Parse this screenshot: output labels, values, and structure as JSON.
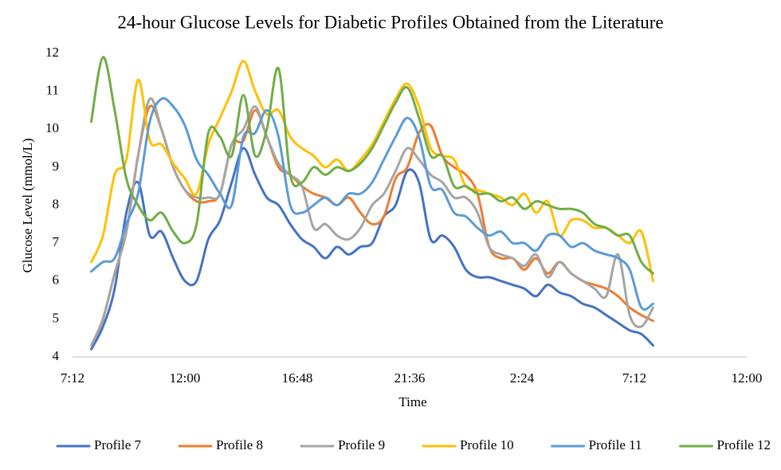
{
  "chart_data": {
    "type": "line",
    "title": "24-hour Glucose Levels for Diabetic Profiles Obtained from the Literature",
    "x_label": "Time",
    "y_label": "Glucose Level (mmol/L)",
    "x": [
      8,
      8.5,
      9,
      9.5,
      10,
      10.5,
      11,
      11.5,
      12,
      12.5,
      13,
      13.5,
      14,
      14.5,
      15,
      15.5,
      16,
      16.5,
      17,
      17.5,
      18,
      18.5,
      19,
      19.5,
      20,
      20.5,
      21,
      21.5,
      22,
      22.5,
      23,
      23.5,
      24,
      24.5,
      25,
      25.5,
      26,
      26.5,
      27,
      27.5,
      28,
      28.5,
      29,
      29.5,
      30,
      30.5,
      31,
      31.5,
      32
    ],
    "xlim": [
      7.2,
      36
    ],
    "xticks": [
      {
        "value": 7.2,
        "label": "7:12"
      },
      {
        "value": 12,
        "label": "12:00"
      },
      {
        "value": 16.8,
        "label": "16:48"
      },
      {
        "value": 21.6,
        "label": "21:36"
      },
      {
        "value": 26.4,
        "label": "2:24"
      },
      {
        "value": 31.2,
        "label": "7:12"
      },
      {
        "value": 36,
        "label": "12:00"
      }
    ],
    "ylim": [
      4,
      12
    ],
    "yticks": [
      4,
      5,
      6,
      7,
      8,
      9,
      10,
      11,
      12
    ],
    "grid": false,
    "legend": "bottom",
    "series": [
      {
        "name": "Profile 7",
        "color": "#4472c4",
        "values": [
          4.2,
          4.8,
          5.8,
          7.8,
          8.6,
          7.2,
          7.3,
          6.6,
          6.0,
          6.0,
          7.1,
          7.6,
          8.6,
          9.5,
          8.8,
          8.2,
          8.0,
          7.5,
          7.1,
          6.9,
          6.6,
          6.9,
          6.7,
          6.9,
          7.0,
          7.7,
          8.0,
          8.9,
          8.6,
          7.1,
          7.2,
          6.9,
          6.3,
          6.1,
          6.1,
          6.0,
          5.9,
          5.8,
          5.6,
          5.9,
          5.7,
          5.6,
          5.4,
          5.3,
          5.1,
          4.9,
          4.7,
          4.6,
          4.3
        ]
      },
      {
        "name": "Profile 8",
        "color": "#ed7d31",
        "values": [
          4.3,
          5.0,
          6.2,
          7.3,
          9.3,
          10.6,
          10.0,
          9.0,
          8.4,
          8.1,
          8.1,
          8.3,
          9.6,
          9.7,
          10.5,
          9.8,
          9.0,
          8.8,
          8.5,
          8.3,
          8.2,
          8.0,
          8.2,
          7.8,
          7.5,
          7.7,
          8.7,
          9.0,
          9.9,
          10.1,
          9.3,
          9.0,
          8.8,
          8.3,
          6.9,
          6.6,
          6.6,
          6.3,
          6.6,
          6.2,
          6.5,
          6.2,
          6.0,
          5.9,
          5.8,
          5.6,
          5.3,
          5.1,
          4.95
        ]
      },
      {
        "name": "Profile 9",
        "color": "#a5a5a5",
        "values": [
          4.3,
          5.0,
          6.2,
          7.3,
          9.3,
          10.8,
          10.0,
          9.0,
          8.4,
          8.2,
          8.2,
          8.3,
          9.6,
          10.0,
          10.6,
          9.8,
          9.1,
          8.8,
          8.5,
          7.4,
          7.5,
          7.2,
          7.1,
          7.4,
          8.0,
          8.3,
          8.9,
          9.5,
          9.2,
          8.8,
          8.6,
          8.2,
          8.2,
          7.8,
          6.9,
          6.7,
          6.6,
          6.4,
          6.7,
          6.1,
          6.5,
          6.2,
          6.0,
          5.8,
          5.6,
          6.7,
          5.1,
          4.8,
          5.3
        ]
      },
      {
        "name": "Profile 10",
        "color": "#ffc000",
        "values": [
          6.5,
          7.2,
          8.8,
          9.2,
          11.3,
          9.7,
          9.6,
          9.1,
          8.7,
          8.3,
          9.6,
          10.3,
          11.0,
          11.8,
          11.0,
          10.4,
          10.5,
          9.8,
          9.5,
          9.3,
          9.0,
          9.2,
          8.9,
          9.2,
          9.6,
          10.2,
          10.8,
          11.2,
          10.6,
          9.5,
          9.3,
          9.2,
          8.5,
          8.4,
          8.3,
          8.2,
          8.0,
          8.3,
          7.8,
          8.1,
          7.2,
          7.6,
          7.6,
          7.4,
          7.4,
          7.2,
          7.0,
          7.3,
          6.0
        ]
      },
      {
        "name": "Profile 11",
        "color": "#5b9bd5",
        "values": [
          6.25,
          6.5,
          6.6,
          7.5,
          8.3,
          10.2,
          10.8,
          10.6,
          10.1,
          9.2,
          8.8,
          8.3,
          8.0,
          9.8,
          9.9,
          10.5,
          9.8,
          8.0,
          7.8,
          8.0,
          8.2,
          8.0,
          8.3,
          8.3,
          8.6,
          9.2,
          9.8,
          10.3,
          9.8,
          8.5,
          8.4,
          7.8,
          7.7,
          7.4,
          7.2,
          7.3,
          7.0,
          7.0,
          6.8,
          7.2,
          7.2,
          6.9,
          7.0,
          6.8,
          6.7,
          6.6,
          6.3,
          5.3,
          5.4
        ]
      },
      {
        "name": "Profile 12",
        "color": "#70ad47",
        "values": [
          10.2,
          11.9,
          10.5,
          8.7,
          8.0,
          7.6,
          7.8,
          7.3,
          7.0,
          7.5,
          9.9,
          9.8,
          9.3,
          10.9,
          9.3,
          10.0,
          11.6,
          8.8,
          8.6,
          9.0,
          8.8,
          9.0,
          8.9,
          9.1,
          9.5,
          10.1,
          10.7,
          11.1,
          10.3,
          9.3,
          9.3,
          8.5,
          8.5,
          8.3,
          8.3,
          8.1,
          8.2,
          7.9,
          8.1,
          8.0,
          7.9,
          7.9,
          7.8,
          7.5,
          7.4,
          7.2,
          7.2,
          6.5,
          6.2
        ]
      }
    ]
  }
}
